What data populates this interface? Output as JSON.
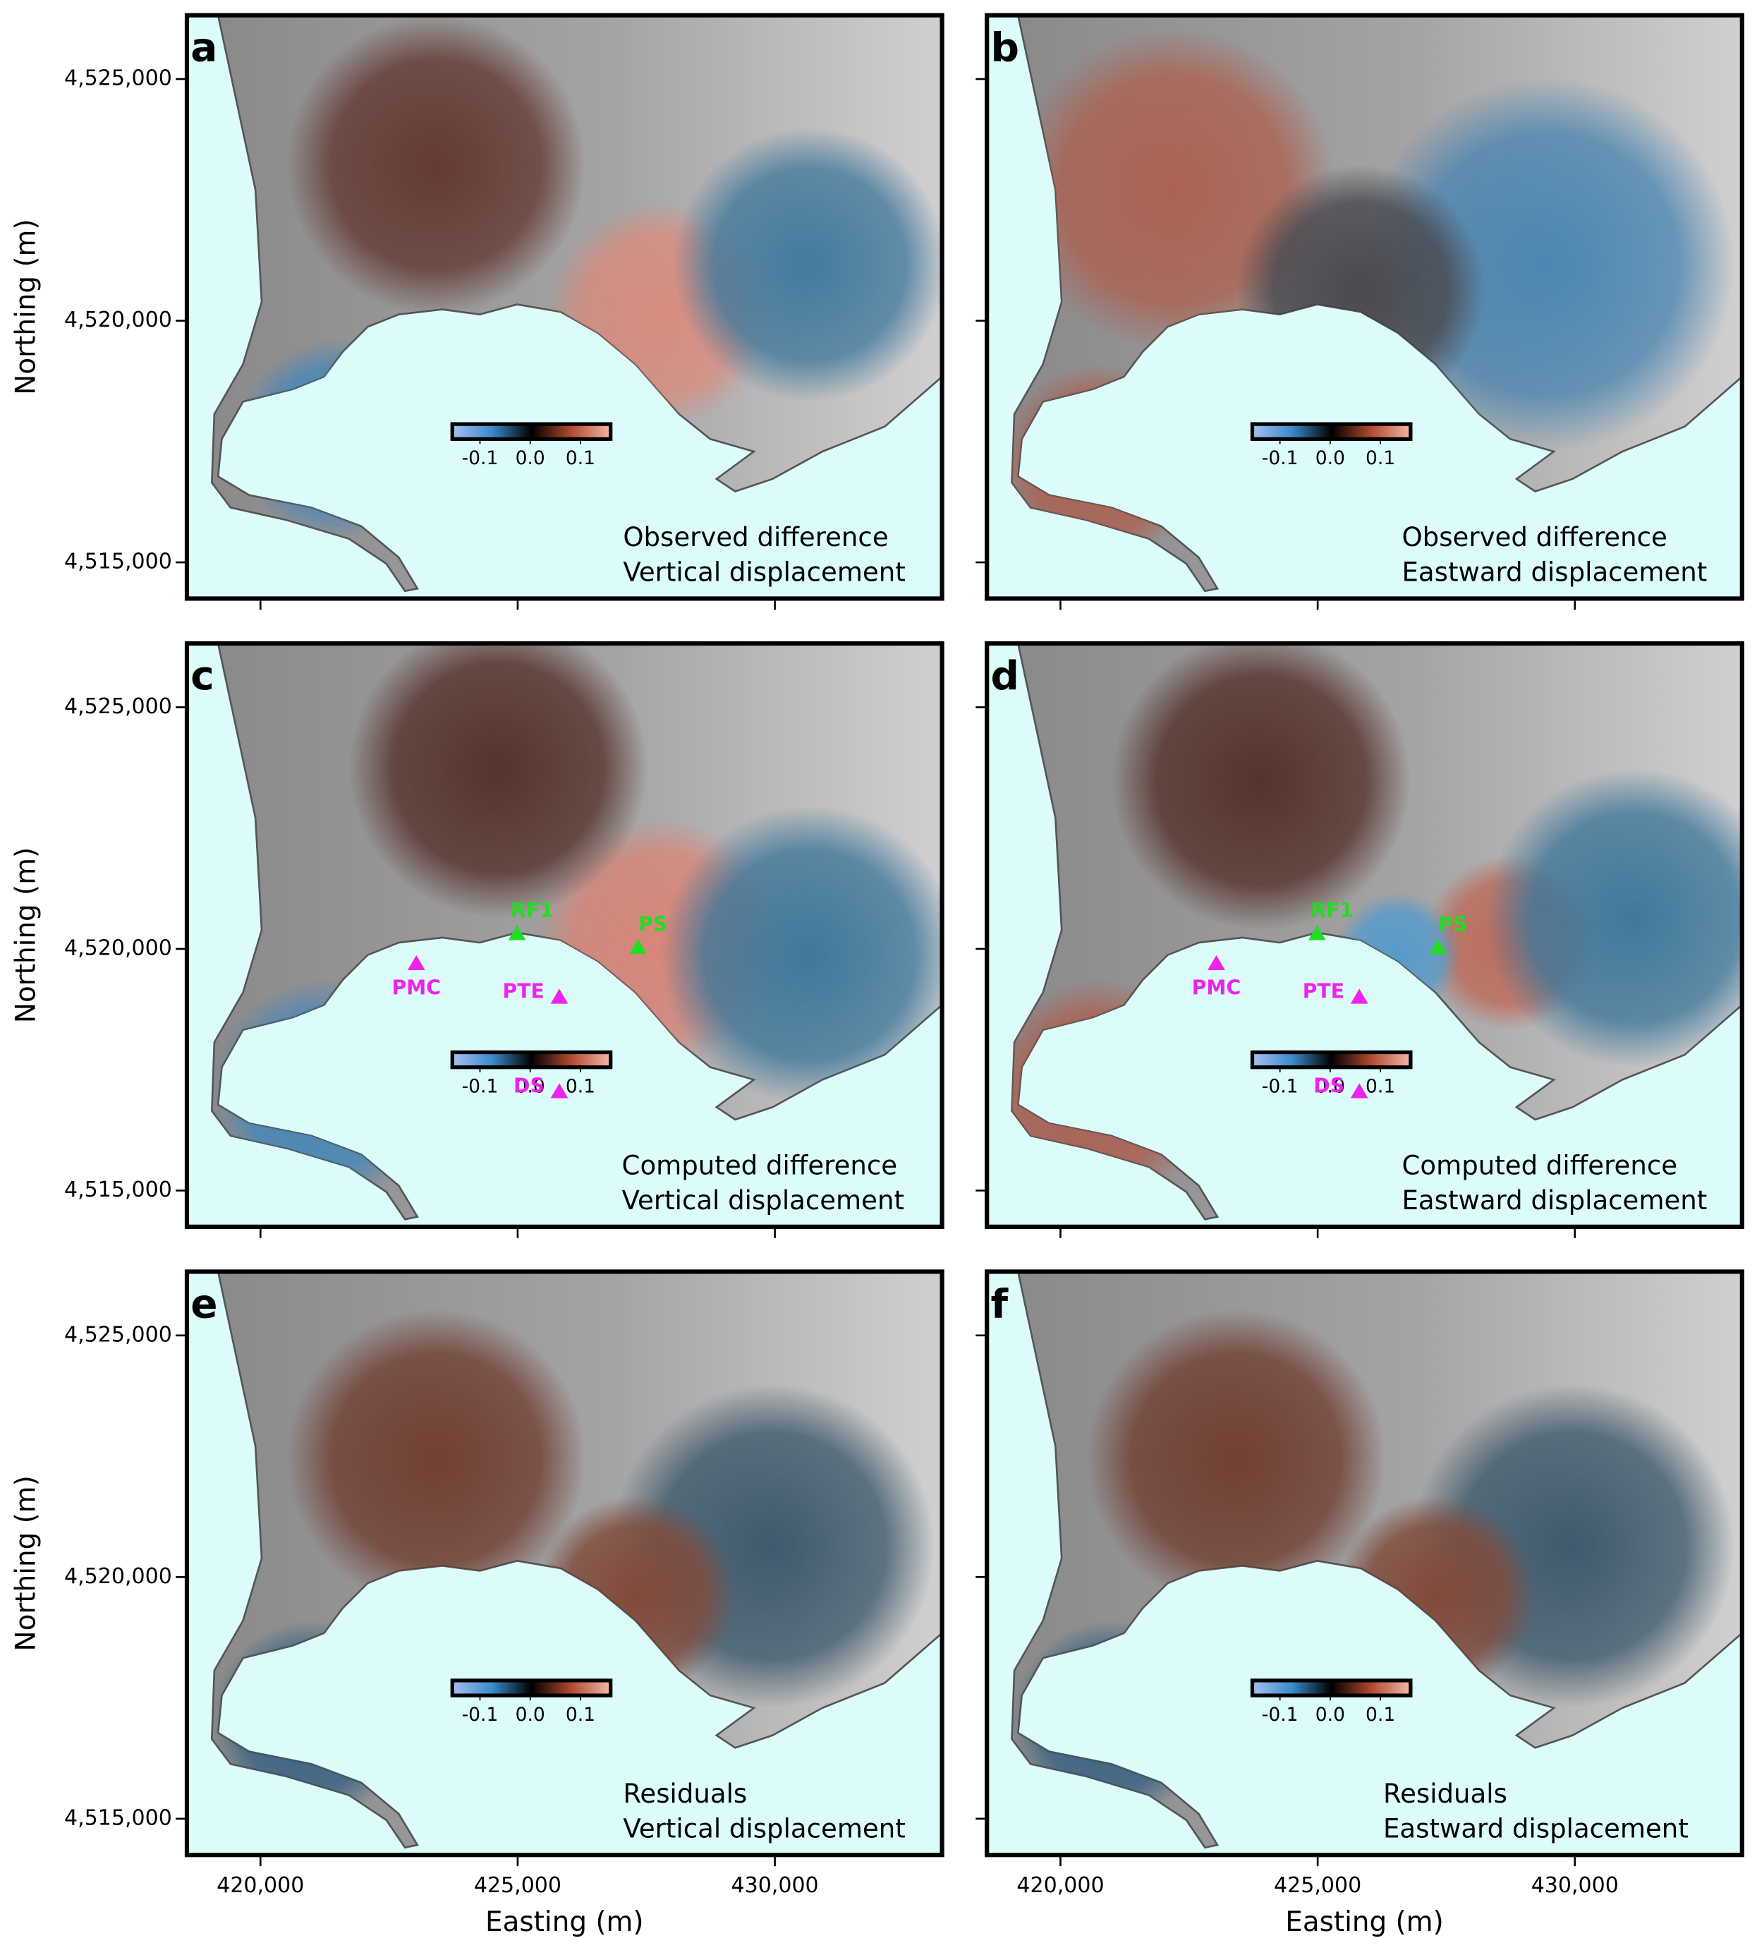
{
  "chart_data": [
    {
      "type": "map",
      "panel": "a",
      "annotation": [
        "Observed difference",
        "Vertical displacement"
      ],
      "xlim": [
        418570,
        433250
      ],
      "ylim": [
        4514250,
        4526320
      ],
      "xticks": [
        420000,
        425000,
        430000
      ],
      "yticks": [
        {
          "value": 4515000,
          "label": "4,515,000"
        },
        {
          "value": 4520000,
          "label": "4,520,000"
        },
        {
          "value": 4525000,
          "label": "4,525,000"
        }
      ],
      "ylabel": "Northing (m)",
      "colorbar": {
        "lim": [
          -0.155,
          0.16
        ],
        "ticks": [
          -0.1,
          {
            "value": 0,
            "label": "0.0"
          },
          0.1
        ],
        "colors": [
          "#a8c0f0",
          "#3a8ccc",
          "#000000",
          "#b04a30",
          "#f4b8a8"
        ]
      }
    },
    {
      "type": "map",
      "panel": "b",
      "annotation": [
        "Observed difference",
        "Eastward displacement"
      ],
      "xlim": [
        418570,
        433250
      ],
      "ylim": [
        4514250,
        4526320
      ],
      "xticks": [
        420000,
        425000,
        430000
      ],
      "yticks": [
        4515000,
        4520000,
        4525000
      ],
      "colorbar": {
        "lim": [
          -0.155,
          0.16
        ],
        "ticks": [
          -0.1,
          {
            "value": 0,
            "label": "0.0"
          },
          0.1
        ],
        "colors": [
          "#a8c0f0",
          "#3a8ccc",
          "#000000",
          "#b04a30",
          "#f4b8a8"
        ]
      }
    },
    {
      "type": "map",
      "panel": "c",
      "annotation": [
        "Computed difference",
        "Vertical displacement"
      ],
      "xlim": [
        418570,
        433250
      ],
      "ylim": [
        4514250,
        4526320
      ],
      "xticks": [
        420000,
        425000,
        430000
      ],
      "yticks": [
        {
          "value": 4515000,
          "label": "4,515,000"
        },
        {
          "value": 4520000,
          "label": "4,520,000"
        },
        {
          "value": 4525000,
          "label": "4,525,000"
        }
      ],
      "ylabel": "Northing (m)",
      "colorbar": {
        "lim": [
          -0.155,
          0.16
        ],
        "ticks": [
          -0.1,
          {
            "value": 0,
            "label": "0.0"
          },
          0.1
        ],
        "colors": [
          "#a8c0f0",
          "#3a8ccc",
          "#000000",
          "#b04a30",
          "#f4b8a8"
        ]
      },
      "stations": [
        {
          "name": "RF1",
          "color": "#22dd22",
          "x": 424990,
          "y": 4520310,
          "label_pos": "above"
        },
        {
          "name": "PS",
          "color": "#22dd22",
          "x": 427340,
          "y": 4520025,
          "label_pos": "above"
        },
        {
          "name": "PMC",
          "color": "#ee22ee",
          "x": 423030,
          "y": 4519690,
          "label_pos": "below"
        },
        {
          "name": "PTE",
          "color": "#ee22ee",
          "x": 425810,
          "y": 4518995,
          "label_pos": "left"
        },
        {
          "name": "DS",
          "color": "#ee22ee",
          "x": 425810,
          "y": 4517040,
          "label_pos": "left"
        }
      ]
    },
    {
      "type": "map",
      "panel": "d",
      "annotation": [
        "Computed difference",
        "Eastward displacement"
      ],
      "xlim": [
        418570,
        433250
      ],
      "ylim": [
        4514250,
        4526320
      ],
      "xticks": [
        420000,
        425000,
        430000
      ],
      "yticks": [
        4515000,
        4520000,
        4525000
      ],
      "colorbar": {
        "lim": [
          -0.155,
          0.16
        ],
        "ticks": [
          -0.1,
          {
            "value": 0,
            "label": "0.0"
          },
          0.1
        ],
        "colors": [
          "#a8c0f0",
          "#3a8ccc",
          "#000000",
          "#b04a30",
          "#f4b8a8"
        ]
      },
      "stations": [
        {
          "name": "RF1",
          "color": "#22dd22",
          "x": 424990,
          "y": 4520310,
          "label_pos": "above"
        },
        {
          "name": "PS",
          "color": "#22dd22",
          "x": 427340,
          "y": 4520025,
          "label_pos": "above"
        },
        {
          "name": "PMC",
          "color": "#ee22ee",
          "x": 423030,
          "y": 4519690,
          "label_pos": "below"
        },
        {
          "name": "PTE",
          "color": "#ee22ee",
          "x": 425810,
          "y": 4518995,
          "label_pos": "left"
        },
        {
          "name": "DS",
          "color": "#ee22ee",
          "x": 425810,
          "y": 4517040,
          "label_pos": "left"
        }
      ]
    },
    {
      "type": "map",
      "panel": "e",
      "annotation": [
        "Residuals",
        "Vertical displacement"
      ],
      "xlim": [
        418570,
        433250
      ],
      "ylim": [
        4514250,
        4526320
      ],
      "xticks": [
        {
          "value": 420000,
          "label": "420,000"
        },
        {
          "value": 425000,
          "label": "425,000"
        },
        {
          "value": 430000,
          "label": "430,000"
        }
      ],
      "yticks": [
        {
          "value": 4515000,
          "label": "4,515,000"
        },
        {
          "value": 4520000,
          "label": "4,520,000"
        },
        {
          "value": 4525000,
          "label": "4,525,000"
        }
      ],
      "xlabel": "Easting (m)",
      "ylabel": "Northing (m)",
      "colorbar": {
        "lim": [
          -0.155,
          0.16
        ],
        "ticks": [
          -0.1,
          {
            "value": 0,
            "label": "0.0"
          },
          0.1
        ],
        "colors": [
          "#a8c0f0",
          "#3a8ccc",
          "#000000",
          "#b04a30",
          "#f4b8a8"
        ]
      }
    },
    {
      "type": "map",
      "panel": "f",
      "annotation": [
        "Residuals",
        "Eastward displacement"
      ],
      "xlim": [
        418570,
        433250
      ],
      "ylim": [
        4514250,
        4526320
      ],
      "xticks": [
        {
          "value": 420000,
          "label": "420,000"
        },
        {
          "value": 425000,
          "label": "425,000"
        },
        {
          "value": 430000,
          "label": "430,000"
        }
      ],
      "yticks": [
        4515000,
        4520000,
        4525000
      ],
      "xlabel": "Easting (m)",
      "colorbar": {
        "lim": [
          -0.155,
          0.16
        ],
        "ticks": [
          -0.1,
          {
            "value": 0,
            "label": "0.0"
          },
          0.1
        ],
        "colors": [
          "#a8c0f0",
          "#3a8ccc",
          "#000000",
          "#b04a30",
          "#f4b8a8"
        ]
      }
    }
  ]
}
